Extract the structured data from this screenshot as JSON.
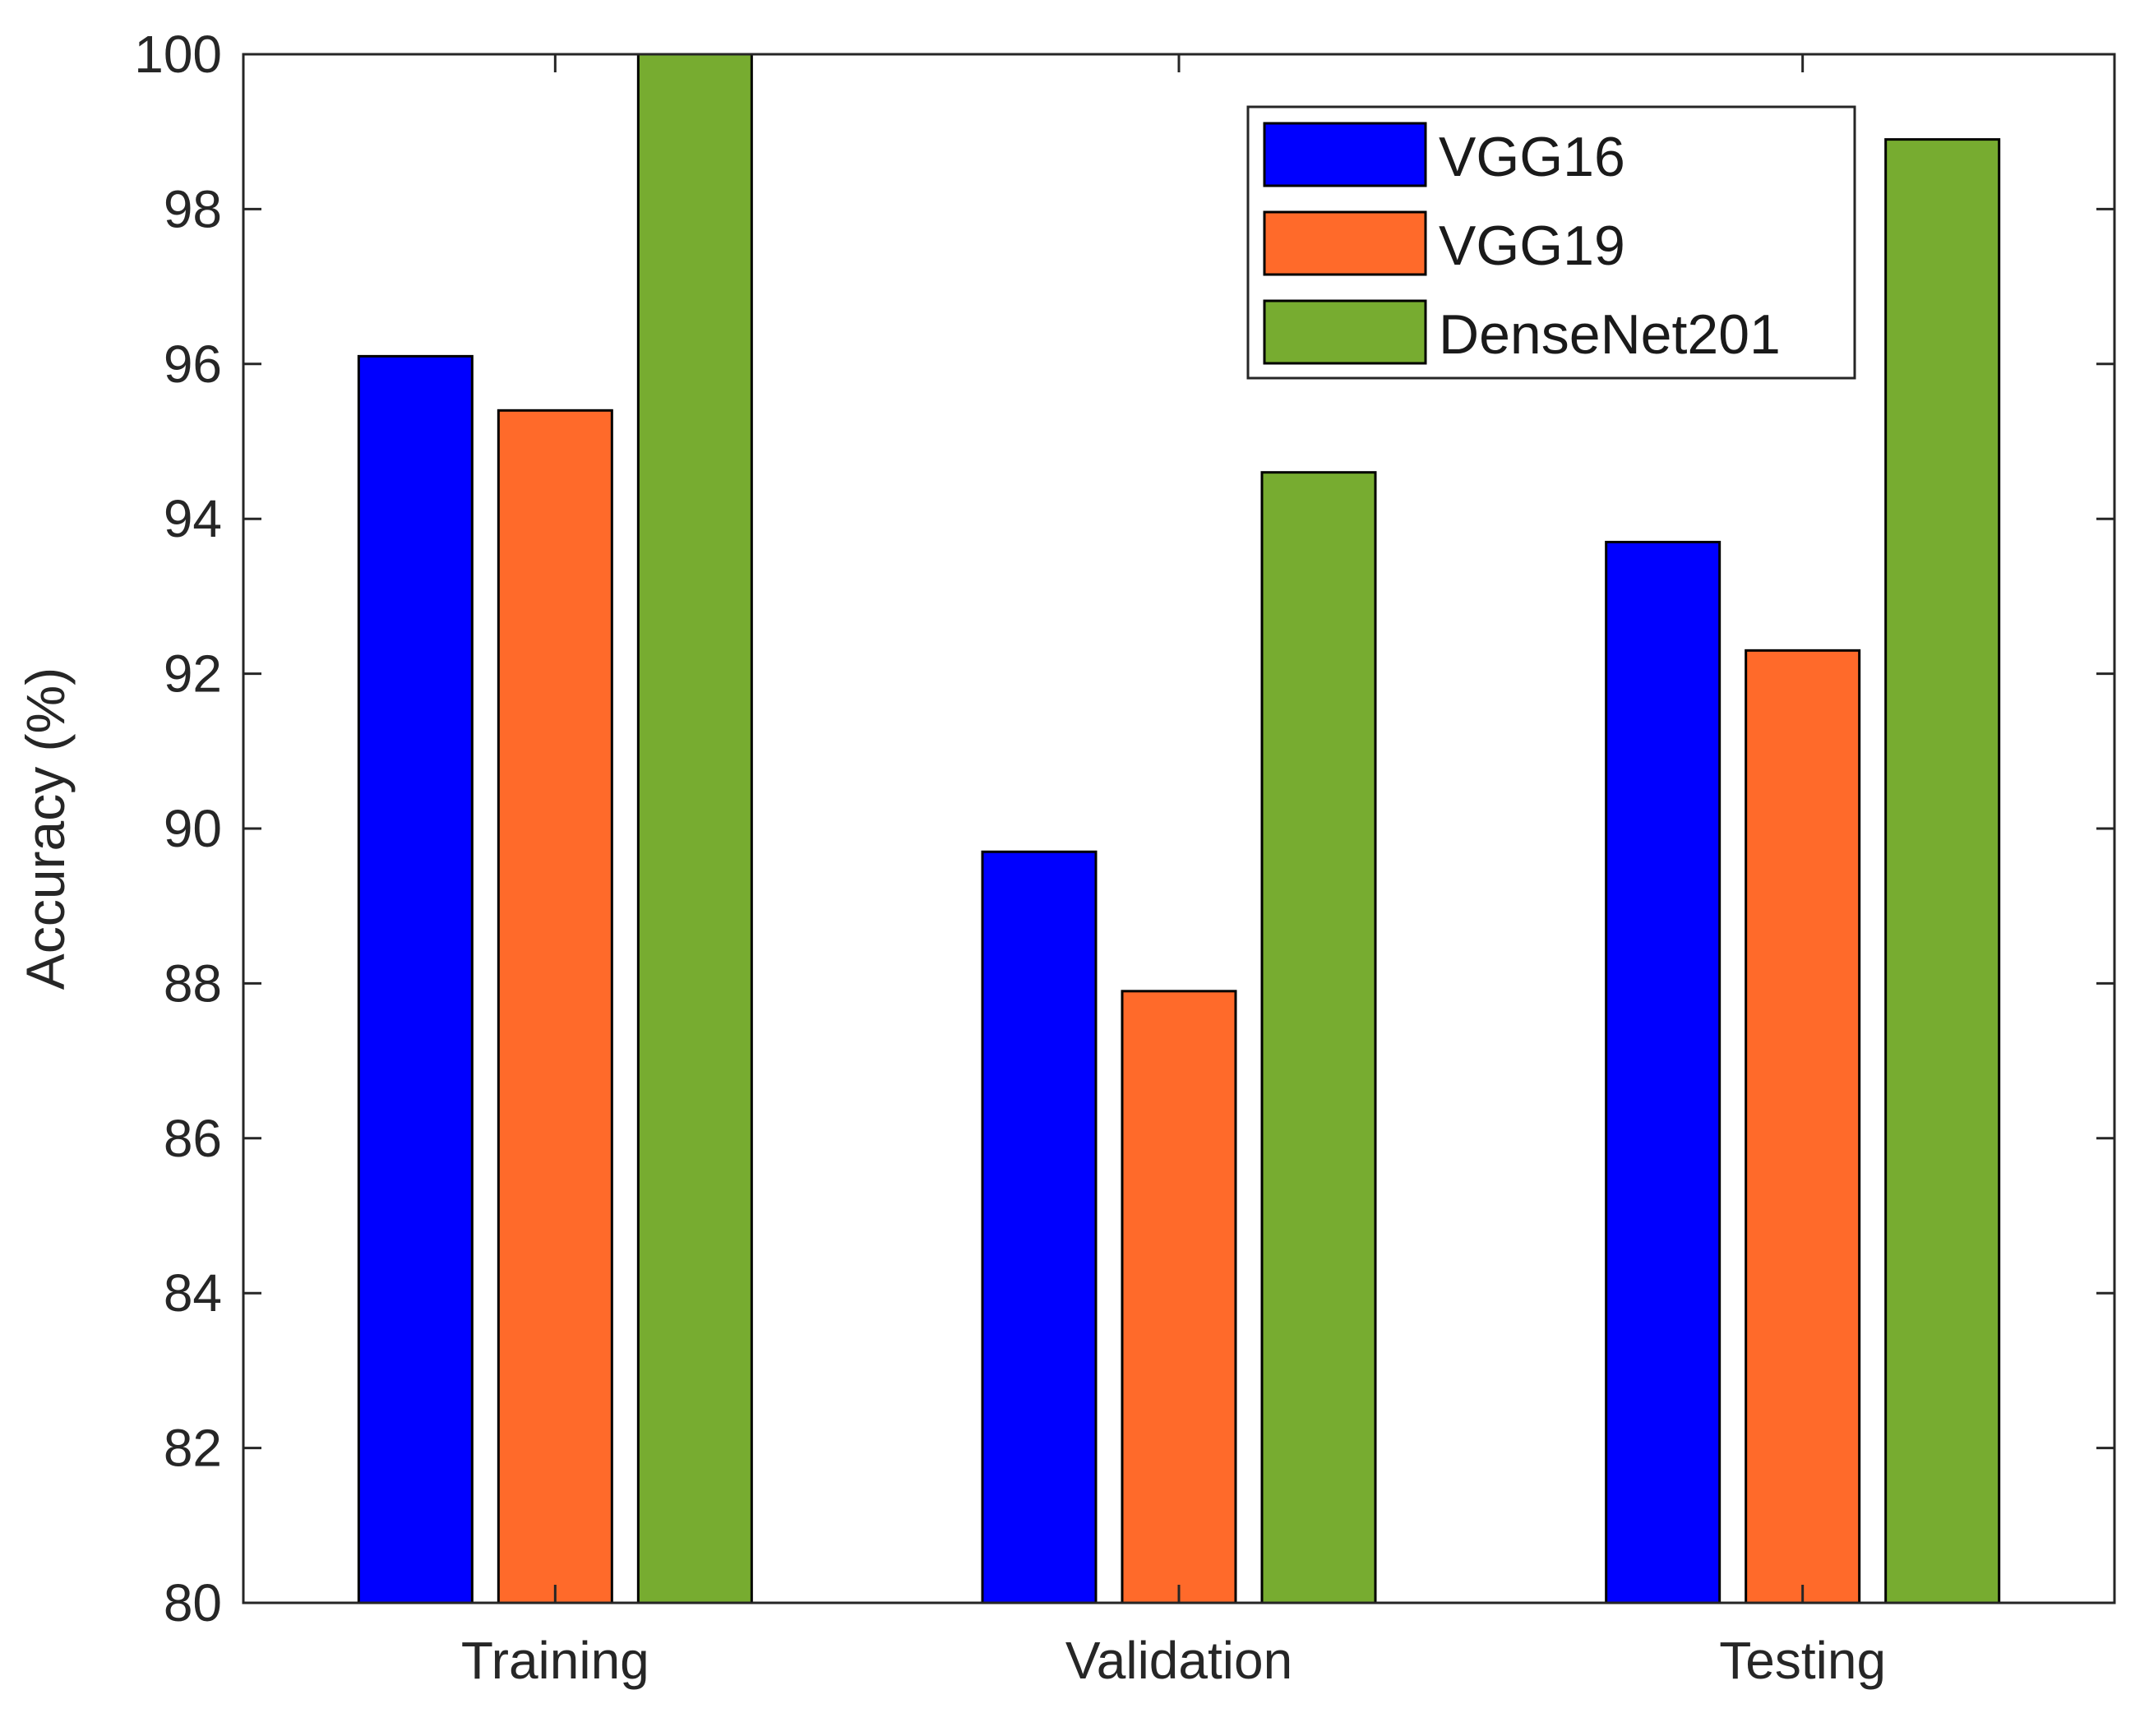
{
  "chart_data": {
    "type": "bar",
    "title": "",
    "xlabel": "",
    "ylabel": "Accuracy (%)",
    "categories": [
      "Training",
      "Validation",
      "Testing"
    ],
    "ylim": [
      80,
      100
    ],
    "yticks": [
      "80",
      "82",
      "84",
      "86",
      "88",
      "90",
      "92",
      "94",
      "96",
      "98",
      "100"
    ],
    "grid": false,
    "legend_position": "top-right",
    "series": [
      {
        "name": "VGG16",
        "color": "#0000ff",
        "values": [
          96.1,
          89.7,
          93.7
        ]
      },
      {
        "name": "VGG19",
        "color": "#ff6a2a",
        "values": [
          95.4,
          87.9,
          92.3
        ]
      },
      {
        "name": "DenseNet201",
        "color": "#77ac30",
        "values": [
          100.0,
          94.6,
          98.9
        ]
      }
    ]
  }
}
